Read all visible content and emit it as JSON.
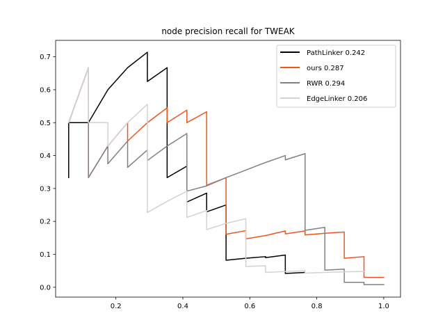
{
  "chart_data": {
    "type": "line",
    "title": "node precision recall for TWEAK",
    "xlabel": "",
    "ylabel": "",
    "xlim": [
      0.02,
      1.05
    ],
    "ylim": [
      -0.03,
      0.75
    ],
    "xticks": [
      0.2,
      0.4,
      0.6,
      0.8,
      1.0
    ],
    "xtick_labels": [
      "0.2",
      "0.4",
      "0.6",
      "0.8",
      "1.0"
    ],
    "yticks": [
      0.0,
      0.1,
      0.2,
      0.3,
      0.4,
      0.5,
      0.6,
      0.7
    ],
    "ytick_labels": [
      "0.0",
      "0.1",
      "0.2",
      "0.3",
      "0.4",
      "0.5",
      "0.6",
      "0.7"
    ],
    "grid": false,
    "legend_position": "top-right",
    "series": [
      {
        "name": "PathLinker 0.242",
        "color": "#000000",
        "points": [
          [
            0.059,
            0.333
          ],
          [
            0.059,
            0.5
          ],
          [
            0.118,
            0.5
          ],
          [
            0.176,
            0.6
          ],
          [
            0.235,
            0.667
          ],
          [
            0.294,
            0.714
          ],
          [
            0.294,
            0.625
          ],
          [
            0.353,
            0.667
          ],
          [
            0.353,
            0.333
          ],
          [
            0.412,
            0.368
          ],
          [
            0.412,
            0.259
          ],
          [
            0.471,
            0.286
          ],
          [
            0.471,
            0.229
          ],
          [
            0.529,
            0.25
          ],
          [
            0.529,
            0.082
          ],
          [
            0.588,
            0.088
          ],
          [
            0.647,
            0.093
          ],
          [
            0.647,
            0.09
          ],
          [
            0.706,
            0.098
          ],
          [
            0.706,
            0.042
          ],
          [
            0.765,
            0.045
          ]
        ]
      },
      {
        "name": "ours 0.287",
        "color": "#f0541e",
        "points": [
          [
            0.059,
            0.5
          ],
          [
            0.118,
            0.667
          ],
          [
            0.118,
            0.333
          ],
          [
            0.176,
            0.429
          ],
          [
            0.235,
            0.5
          ],
          [
            0.235,
            0.444
          ],
          [
            0.294,
            0.5
          ],
          [
            0.353,
            0.545
          ],
          [
            0.353,
            0.5
          ],
          [
            0.412,
            0.538
          ],
          [
            0.412,
            0.5
          ],
          [
            0.471,
            0.533
          ],
          [
            0.471,
            0.308
          ],
          [
            0.529,
            0.333
          ],
          [
            0.529,
            0.161
          ],
          [
            0.588,
            0.172
          ],
          [
            0.588,
            0.147
          ],
          [
            0.647,
            0.157
          ],
          [
            0.706,
            0.171
          ],
          [
            0.706,
            0.162
          ],
          [
            0.765,
            0.171
          ],
          [
            0.765,
            0.159
          ],
          [
            0.824,
            0.164
          ],
          [
            0.882,
            0.168
          ],
          [
            0.882,
            0.088
          ],
          [
            0.941,
            0.093
          ],
          [
            0.941,
            0.03
          ],
          [
            1.0,
            0.03
          ]
        ]
      },
      {
        "name": "RWR 0.294",
        "color": "#808080",
        "points": [
          [
            0.059,
            0.5
          ],
          [
            0.118,
            0.667
          ],
          [
            0.118,
            0.333
          ],
          [
            0.176,
            0.429
          ],
          [
            0.176,
            0.375
          ],
          [
            0.235,
            0.444
          ],
          [
            0.235,
            0.364
          ],
          [
            0.294,
            0.417
          ],
          [
            0.294,
            0.385
          ],
          [
            0.353,
            0.429
          ],
          [
            0.412,
            0.467
          ],
          [
            0.412,
            0.292
          ],
          [
            0.471,
            0.308
          ],
          [
            0.471,
            0.31
          ],
          [
            0.529,
            0.333
          ],
          [
            0.588,
            0.356
          ],
          [
            0.647,
            0.379
          ],
          [
            0.706,
            0.4
          ],
          [
            0.706,
            0.387
          ],
          [
            0.765,
            0.406
          ],
          [
            0.765,
            0.173
          ],
          [
            0.824,
            0.182
          ],
          [
            0.824,
            0.052
          ],
          [
            0.882,
            0.055
          ],
          [
            0.882,
            0.015
          ],
          [
            0.941,
            0.015
          ],
          [
            0.941,
            0.008
          ],
          [
            1.0,
            0.008
          ]
        ]
      },
      {
        "name": "EdgeLinker 0.206",
        "color": "#d3d3d3",
        "points": [
          [
            0.059,
            0.5
          ],
          [
            0.118,
            0.667
          ],
          [
            0.118,
            0.5
          ],
          [
            0.176,
            0.5
          ],
          [
            0.176,
            0.429
          ],
          [
            0.235,
            0.5
          ],
          [
            0.294,
            0.556
          ],
          [
            0.294,
            0.227
          ],
          [
            0.353,
            0.261
          ],
          [
            0.412,
            0.292
          ],
          [
            0.412,
            0.212
          ],
          [
            0.471,
            0.233
          ],
          [
            0.471,
            0.175
          ],
          [
            0.529,
            0.194
          ],
          [
            0.588,
            0.208
          ],
          [
            0.588,
            0.063
          ],
          [
            0.647,
            0.065
          ],
          [
            0.647,
            0.045
          ],
          [
            0.706,
            0.048
          ],
          [
            0.765,
            0.05
          ],
          [
            0.765,
            0.043
          ],
          [
            0.824,
            0.045
          ],
          [
            0.882,
            0.047
          ],
          [
            0.941,
            0.048
          ]
        ]
      }
    ]
  }
}
